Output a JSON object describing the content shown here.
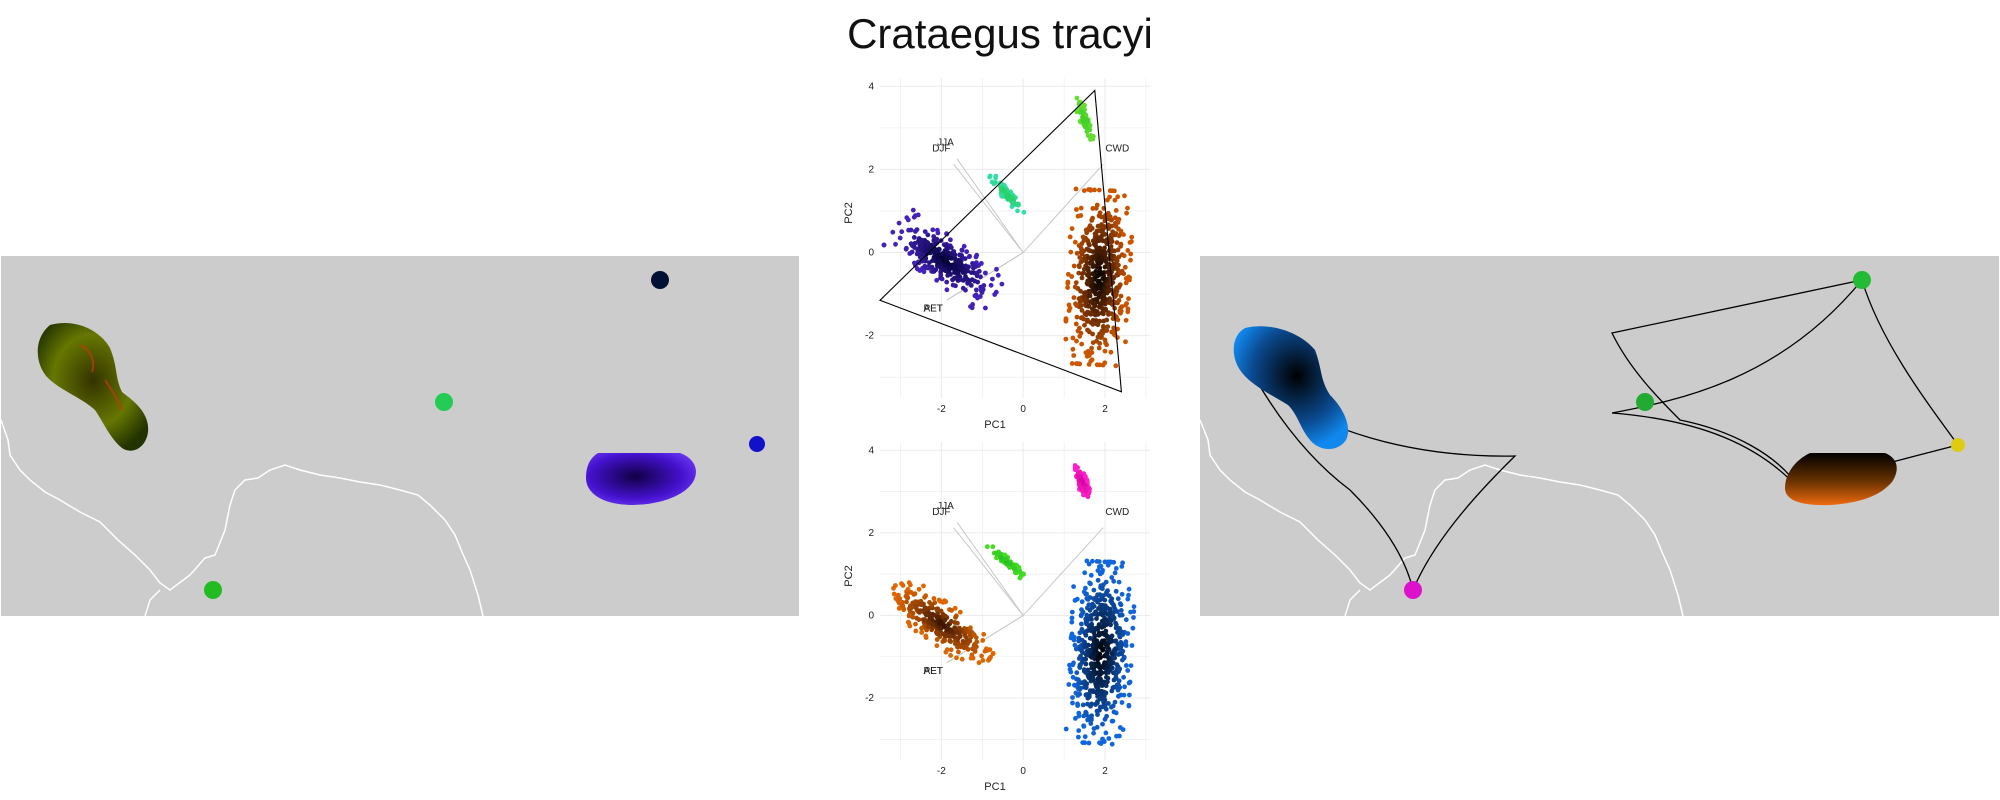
{
  "title": "Crataegus tracyi",
  "colors": {
    "map_bg": "#cccccc",
    "border": "#ffffff",
    "grid": "#ebebeb",
    "hull": "#000000"
  },
  "chart_data": [
    {
      "type": "scatter",
      "panel": "top",
      "xlabel": "PC1",
      "ylabel": "PC2",
      "xlim": [
        -3.5,
        3.1
      ],
      "ylim": [
        -3.5,
        4.2
      ],
      "xticks": [
        "-2",
        "0",
        "2"
      ],
      "yticks": [
        "-2",
        "0",
        "2",
        "4"
      ],
      "xtick_values": [
        -2,
        0,
        2
      ],
      "ytick_values": [
        -2,
        0,
        2,
        4
      ],
      "grid": true,
      "vectors": [
        {
          "label": "JJA",
          "x": -1.9,
          "y": 2.65
        },
        {
          "label": "DJF",
          "x": -2.0,
          "y": 2.5
        },
        {
          "label": "CWD",
          "x": 2.3,
          "y": 2.5
        },
        {
          "label": "AET",
          "x": -2.2,
          "y": -1.35
        },
        {
          "label": "PET",
          "x": -2.2,
          "y": -1.35
        }
      ],
      "clusters": [
        {
          "cx": -1.9,
          "cy": -0.2,
          "rx": 1.45,
          "ry": 0.55,
          "rot": -35,
          "c1": "#000033",
          "c2": "#4422bb"
        },
        {
          "cx": -0.4,
          "cy": 1.4,
          "rx": 0.6,
          "ry": 0.12,
          "rot": -45,
          "c1": "#22cc44",
          "c2": "#33ddaa"
        },
        {
          "cx": 1.5,
          "cy": 3.2,
          "rx": 0.55,
          "ry": 0.12,
          "rot": -70,
          "c1": "#33cc22",
          "c2": "#66dd33"
        },
        {
          "cx": 1.85,
          "cy": -0.6,
          "rx": 0.75,
          "ry": 2.1,
          "rot": -3,
          "c1": "#000000",
          "c2": "#cc5500"
        }
      ],
      "hull": [
        [
          -3.5,
          -1.15
        ],
        [
          1.75,
          3.9
        ],
        [
          2.4,
          -3.35
        ]
      ]
    },
    {
      "type": "scatter",
      "panel": "bottom",
      "xlabel": "PC1",
      "ylabel": "PC2",
      "xlim": [
        -3.5,
        3.1
      ],
      "ylim": [
        -3.5,
        4.2
      ],
      "xticks": [
        "-2",
        "0",
        "2"
      ],
      "yticks": [
        "-2",
        "0",
        "2",
        "4"
      ],
      "xtick_values": [
        -2,
        0,
        2
      ],
      "ytick_values": [
        -2,
        0,
        2,
        4
      ],
      "grid": true,
      "vectors": [
        {
          "label": "JJA",
          "x": -1.9,
          "y": 2.65
        },
        {
          "label": "DJF",
          "x": -2.0,
          "y": 2.5
        },
        {
          "label": "CWD",
          "x": 2.3,
          "y": 2.5
        },
        {
          "label": "AET",
          "x": -2.2,
          "y": -1.35
        },
        {
          "label": "PET",
          "x": -2.2,
          "y": -1.35
        }
      ],
      "clusters": [
        {
          "cx": -2.0,
          "cy": -0.2,
          "rx": 1.45,
          "ry": 0.5,
          "rot": -35,
          "c1": "#331100",
          "c2": "#dd6600"
        },
        {
          "cx": -0.4,
          "cy": 1.3,
          "rx": 0.6,
          "ry": 0.1,
          "rot": -40,
          "c1": "#22bb22",
          "c2": "#44dd22"
        },
        {
          "cx": 1.45,
          "cy": 3.2,
          "rx": 0.5,
          "ry": 0.13,
          "rot": -70,
          "c1": "#cc0099",
          "c2": "#ff22cc"
        },
        {
          "cx": 1.9,
          "cy": -0.9,
          "rx": 0.75,
          "ry": 2.2,
          "rot": -3,
          "c1": "#000000",
          "c2": "#1166dd"
        }
      ]
    }
  ],
  "maps": {
    "left": {
      "patches": [
        {
          "kind": "blob",
          "color_a": "#222200",
          "color_b": "#889900",
          "accent": "#cc3311"
        },
        {
          "kind": "dot",
          "color": "#001133"
        },
        {
          "kind": "dot",
          "color": "#22cc55"
        },
        {
          "kind": "dot",
          "color": "#22bb22"
        },
        {
          "kind": "dot",
          "color": "#1111cc"
        },
        {
          "kind": "blob",
          "color_a": "#220066",
          "color_b": "#5522ee",
          "accent": "#1144aa"
        }
      ]
    },
    "right": {
      "patches": [
        {
          "kind": "blob",
          "color_a": "#000000",
          "color_b": "#1177dd"
        },
        {
          "kind": "blob",
          "color_a": "#000000",
          "color_b": "#ee6600"
        },
        {
          "kind": "dot",
          "color": "#22bb33"
        },
        {
          "kind": "dot",
          "color": "#22aa33"
        },
        {
          "kind": "dot",
          "color": "#dd11cc"
        },
        {
          "kind": "dot",
          "color": "#ddcc11"
        }
      ]
    }
  }
}
